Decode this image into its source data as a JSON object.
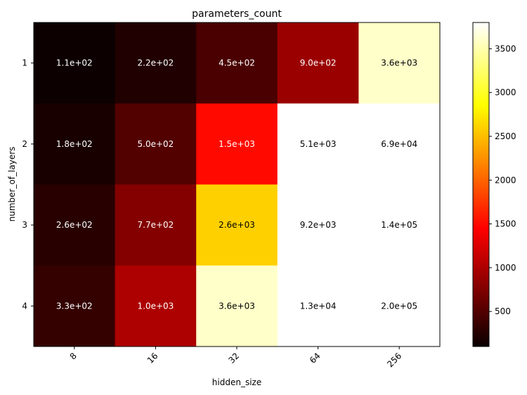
{
  "chart_data": {
    "type": "heatmap",
    "title": "parameters_count",
    "xlabel": "hidden_size",
    "ylabel": "number_of_layers",
    "x_categories": [
      "8",
      "16",
      "32",
      "64",
      "256"
    ],
    "y_categories": [
      "1",
      "2",
      "3",
      "4"
    ],
    "values": [
      [
        110,
        220,
        450,
        900,
        3600
      ],
      [
        180,
        500,
        1500,
        5100,
        69000
      ],
      [
        260,
        770,
        2600,
        9200,
        140000
      ],
      [
        330,
        1000,
        3600,
        13000,
        200000
      ]
    ],
    "cell_labels": [
      [
        "1.1e+02",
        "2.2e+02",
        "4.5e+02",
        "9.0e+02",
        "3.6e+03"
      ],
      [
        "1.8e+02",
        "5.0e+02",
        "1.5e+03",
        "5.1e+03",
        "6.9e+04"
      ],
      [
        "2.6e+02",
        "7.7e+02",
        "2.6e+03",
        "9.2e+03",
        "1.4e+05"
      ],
      [
        "3.3e+02",
        "1.0e+03",
        "3.6e+03",
        "1.3e+04",
        "2.0e+05"
      ]
    ],
    "colormap": "hot",
    "color_range": [
      100,
      3800
    ],
    "colorbar_ticks": [
      500,
      1000,
      1500,
      2000,
      2500,
      3000,
      3500
    ],
    "colorbar_tick_labels": [
      "500",
      "1000",
      "1500",
      "2000",
      "2500",
      "3000",
      "3500"
    ],
    "legend": "colorbar-right",
    "grid": false
  }
}
